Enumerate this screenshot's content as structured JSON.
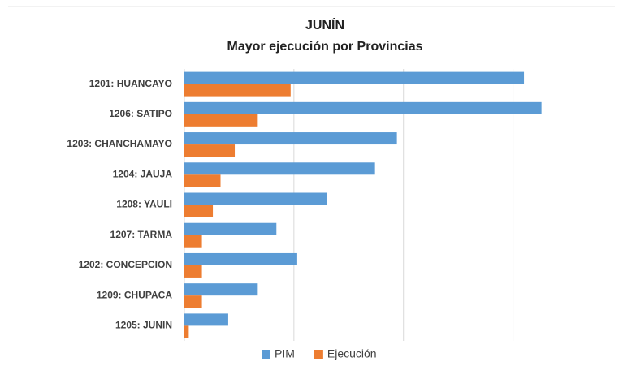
{
  "chart_data": {
    "type": "hbar",
    "title": "JUNÍN",
    "subtitle": "Mayor ejecución por Provincias",
    "categories": [
      "1201: HUANCAYO",
      "1206: SATIPO",
      "1203: CHANCHAMAYO",
      "1204: JAUJA",
      "1208: YAULI",
      "1207: TARMA",
      "1202: CONCEPCION",
      "1209: CHUPACA",
      "1205: JUNIN"
    ],
    "series": [
      {
        "name": "PIM",
        "color": "#5b9bd5",
        "values": [
          3.1,
          3.26,
          1.94,
          1.74,
          1.3,
          0.84,
          1.03,
          0.67,
          0.4
        ]
      },
      {
        "name": "Ejecución",
        "color": "#ed7d31",
        "values": [
          0.97,
          0.67,
          0.46,
          0.33,
          0.26,
          0.16,
          0.16,
          0.16,
          0.04
        ]
      }
    ],
    "xlim": [
      0,
      3.5
    ],
    "xticks": [
      0,
      1,
      2,
      3
    ],
    "grid": true
  }
}
